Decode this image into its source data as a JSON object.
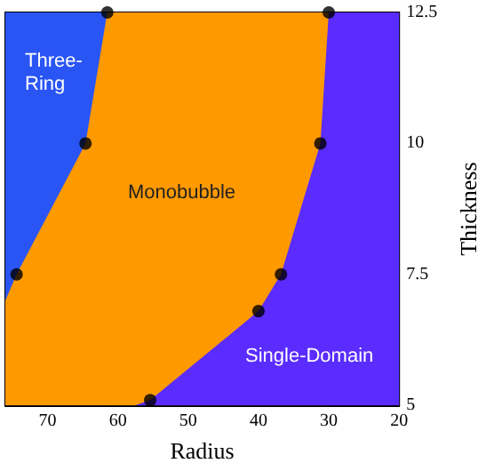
{
  "chart_data": {
    "type": "area",
    "xlabel": "Radius",
    "ylabel": "Thickness",
    "xlim": [
      76,
      20
    ],
    "xticks": [
      20,
      30,
      40,
      50,
      60,
      70
    ],
    "ylim": [
      5,
      12.5
    ],
    "yticks": [
      5,
      7.5,
      10,
      12.5
    ],
    "series": [
      {
        "color": "#2a55f5",
        "x": [
          61.5,
          76
        ],
        "values": [
          12.5,
          12.5
        ]
      },
      {
        "color": "#ff9900",
        "x": [
          30,
          61.5,
          64.6,
          74.4,
          76
        ],
        "values": [
          12.5,
          12.5,
          10,
          7.5,
          7.0
        ]
      },
      {
        "color": "#5a2cff",
        "x": [
          20,
          30,
          31.2,
          36.8,
          40,
          55.4,
          57.6
        ],
        "values": [
          12.5,
          12.5,
          10,
          7.5,
          6.8,
          5.1,
          5
        ]
      },
      {
        "type": "scatter",
        "color": "#000000",
        "x": [
          61.5,
          64.6,
          74.4,
          30,
          31.2,
          36.8,
          40,
          55.4
        ],
        "values": [
          12.5,
          10,
          7.5,
          12.5,
          10,
          7.5,
          6.8,
          5.1
        ]
      }
    ],
    "annotations": [
      "Three-\nRing",
      "Monobubble",
      "Single-Domain"
    ]
  }
}
